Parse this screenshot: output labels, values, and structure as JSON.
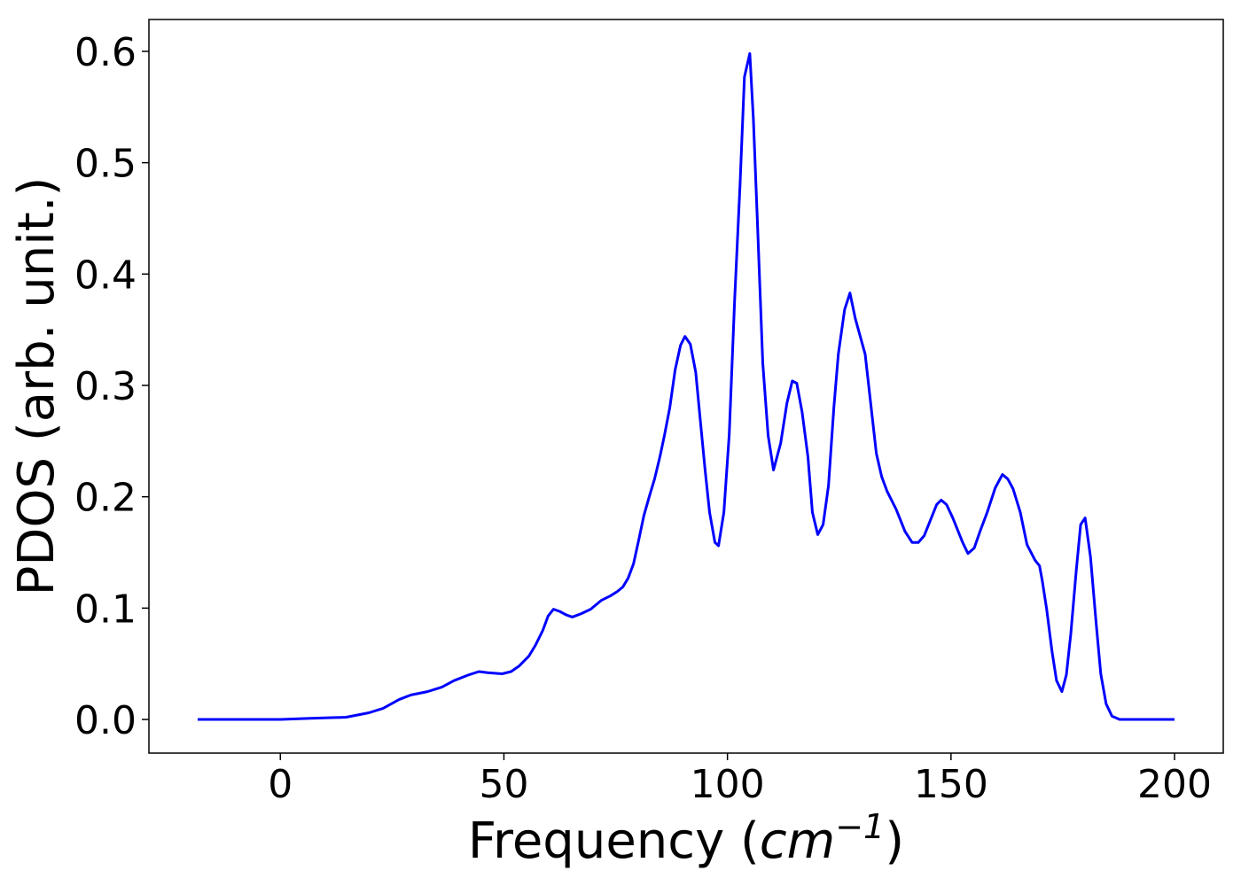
{
  "chart_data": {
    "type": "line",
    "xlabel": [
      "Frequency (",
      "cm",
      "−1",
      ")"
    ],
    "ylabel": "PDOS (arb. unit.)",
    "xlim": [
      -29.4,
      210.9
    ],
    "ylim": [
      -0.0302,
      0.6286
    ],
    "xticks": [
      0,
      50,
      100,
      150,
      200
    ],
    "yticks": [
      {
        "value": 0,
        "label": "0.0"
      },
      {
        "value": 0.1,
        "label": "0.1"
      },
      {
        "value": 0.2,
        "label": "0.2"
      },
      {
        "value": 0.3,
        "label": "0.3"
      },
      {
        "value": 0.4,
        "label": "0.4"
      },
      {
        "value": 0.5,
        "label": "0.5"
      },
      {
        "value": 0.6,
        "label": "0.6"
      }
    ],
    "grid": false,
    "series": [
      {
        "color": "#0000ff",
        "x": [
          -18.5,
          0,
          6.7,
          14.7,
          19.8,
          23,
          26.6,
          29.2,
          32.9,
          36.1,
          38.9,
          42.1,
          44.4,
          46.4,
          49.6,
          51.6,
          53.4,
          55.6,
          57.1,
          58.7,
          59.9,
          61.1,
          62.5,
          63.9,
          65.3,
          67.3,
          69.4,
          71.8,
          73.8,
          75.4,
          76.6,
          77.8,
          79,
          80.2,
          81.3,
          82.5,
          83.7,
          84.9,
          85.9,
          87.1,
          88.3,
          89.5,
          90.5,
          91.7,
          92.9,
          93.8,
          95,
          96,
          97.2,
          98,
          99.2,
          100.4,
          101.6,
          102.8,
          103.8,
          105,
          105.8,
          106.7,
          107.9,
          109.1,
          110.3,
          111.9,
          113.3,
          114.5,
          115.5,
          116.7,
          118,
          119,
          120.2,
          121.4,
          122.6,
          123.8,
          124.8,
          126.2,
          127.4,
          128.6,
          130.8,
          133.3,
          134.5,
          135.7,
          137.7,
          139.7,
          141.3,
          142.7,
          144,
          145.2,
          146.8,
          147.8,
          149,
          150.4,
          152.6,
          153.8,
          155.2,
          156.5,
          158.1,
          159.9,
          161.5,
          162.7,
          163.9,
          165.5,
          167,
          168.8,
          169.8,
          170.4,
          171.4,
          172.6,
          173.6,
          174.8,
          175.8,
          176.8,
          178,
          179,
          180,
          181.2,
          182.5,
          183.5,
          184.7,
          186,
          187.7,
          200
        ],
        "values": [
          0,
          0,
          0.001,
          0.002,
          0.006,
          0.01,
          0.018,
          0.022,
          0.025,
          0.029,
          0.035,
          0.04,
          0.043,
          0.042,
          0.041,
          0.043,
          0.048,
          0.057,
          0.067,
          0.08,
          0.093,
          0.099,
          0.097,
          0.094,
          0.092,
          0.095,
          0.099,
          0.107,
          0.111,
          0.115,
          0.119,
          0.127,
          0.14,
          0.162,
          0.183,
          0.2,
          0.216,
          0.236,
          0.255,
          0.28,
          0.314,
          0.336,
          0.344,
          0.337,
          0.312,
          0.274,
          0.224,
          0.186,
          0.159,
          0.156,
          0.186,
          0.256,
          0.376,
          0.479,
          0.577,
          0.598,
          0.539,
          0.447,
          0.32,
          0.255,
          0.224,
          0.248,
          0.284,
          0.304,
          0.302,
          0.276,
          0.236,
          0.186,
          0.166,
          0.175,
          0.21,
          0.28,
          0.328,
          0.368,
          0.383,
          0.36,
          0.328,
          0.239,
          0.218,
          0.205,
          0.189,
          0.169,
          0.159,
          0.159,
          0.165,
          0.177,
          0.193,
          0.197,
          0.193,
          0.181,
          0.159,
          0.149,
          0.154,
          0.169,
          0.186,
          0.208,
          0.22,
          0.216,
          0.207,
          0.186,
          0.157,
          0.143,
          0.138,
          0.125,
          0.099,
          0.061,
          0.035,
          0.025,
          0.04,
          0.077,
          0.133,
          0.175,
          0.181,
          0.146,
          0.085,
          0.041,
          0.014,
          0.003,
          0,
          0
        ]
      }
    ]
  }
}
